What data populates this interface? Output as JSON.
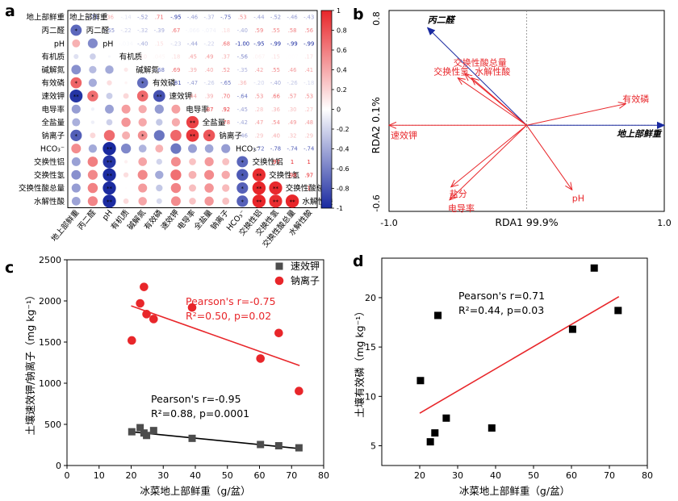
{
  "panels": {
    "a": "a",
    "b": "b",
    "c": "c",
    "d": "d"
  },
  "chart_data": [
    {
      "panel": "a",
      "type": "heatmap",
      "variables": [
        "地上部鲜重",
        "丙二醛",
        "pH",
        "有机质",
        "碱解氮",
        "有效磷",
        "速效钾",
        "电导率",
        "全盐量",
        "钠离子",
        "HCO₃⁻",
        "交换性铝",
        "交换性氢",
        "交换性酸总量",
        "水解性酸"
      ],
      "correlations": [
        [
          1,
          -0.71,
          0.36,
          -0.14,
          -0.52,
          0.71,
          -0.95,
          -0.46,
          -0.37,
          -0.75,
          0.53,
          -0.44,
          -0.52,
          -0.46,
          -0.43
        ],
        [
          -0.71,
          1,
          -0.55,
          -0.22,
          -0.32,
          -0.39,
          0.67,
          -0.066,
          -0.074,
          0.18,
          -0.4,
          0.59,
          0.55,
          0.58,
          0.56
        ],
        [
          0.36,
          -0.55,
          1,
          -0.034,
          -0.4,
          0.15,
          -0.23,
          -0.44,
          -0.22,
          0.68,
          -1.0,
          -0.95,
          -0.99,
          -0.99,
          -0.99
        ],
        [
          -0.14,
          -0.22,
          -0.034,
          1,
          0.1,
          0.045,
          0.18,
          0.45,
          0.49,
          0.37,
          -0.56,
          0.067,
          0.15,
          0.007,
          0.17
        ],
        [
          -0.52,
          -0.32,
          -0.4,
          0.1,
          1,
          -0.68,
          0.69,
          0.39,
          0.4,
          0.52,
          -0.35,
          0.42,
          0.55,
          0.46,
          0.41
        ],
        [
          0.71,
          -0.39,
          0.15,
          0.045,
          -0.68,
          1,
          -0.81,
          -0.47,
          -0.26,
          -0.65,
          0.36,
          -0.2,
          -0.4,
          -0.26,
          -0.18
        ],
        [
          -0.95,
          0.67,
          -0.23,
          0.18,
          0.69,
          -0.81,
          1,
          0.44,
          0.39,
          0.7,
          -0.64,
          0.53,
          0.66,
          0.57,
          0.53
        ],
        [
          -0.46,
          -0.066,
          -0.44,
          0.45,
          0.39,
          -0.47,
          0.44,
          1,
          0.87,
          0.92,
          -0.45,
          0.28,
          0.36,
          0.3,
          0.27
        ],
        [
          -0.37,
          -0.074,
          -0.22,
          0.49,
          0.4,
          -0.26,
          0.39,
          0.87,
          1,
          0.78,
          -0.42,
          0.47,
          0.54,
          0.49,
          0.48
        ],
        [
          -0.75,
          0.18,
          0.68,
          0.37,
          0.52,
          -0.65,
          0.7,
          0.92,
          0.78,
          1,
          -0.46,
          0.29,
          0.4,
          0.32,
          0.29
        ],
        [
          0.53,
          -0.4,
          -1.0,
          -0.56,
          -0.35,
          0.36,
          -0.64,
          -0.45,
          -0.42,
          -0.46,
          1,
          -0.72,
          -0.78,
          -0.74,
          -0.74
        ],
        [
          -0.44,
          0.59,
          -0.95,
          0.067,
          0.42,
          -0.2,
          0.53,
          0.28,
          0.47,
          0.29,
          -0.72,
          1,
          0.97,
          1.0,
          1.0
        ],
        [
          -0.52,
          0.55,
          -0.99,
          0.15,
          0.55,
          -0.4,
          0.66,
          0.36,
          0.54,
          0.4,
          -0.78,
          0.97,
          1,
          0.98,
          0.97
        ],
        [
          -0.46,
          0.58,
          -0.99,
          0.007,
          0.46,
          -0.26,
          0.57,
          0.3,
          0.49,
          0.32,
          -0.74,
          1.0,
          0.98,
          1,
          1.0
        ],
        [
          -0.43,
          0.56,
          -0.99,
          0.17,
          0.41,
          -0.18,
          0.53,
          0.27,
          0.48,
          0.29,
          -0.74,
          1.0,
          0.97,
          1.0,
          1
        ]
      ],
      "lower_triangle_stars": [
        {
          "row": 1,
          "col": 0,
          "stars": "*"
        },
        {
          "row": 5,
          "col": 0,
          "stars": "*"
        },
        {
          "row": 5,
          "col": 4,
          "stars": "*"
        },
        {
          "row": 6,
          "col": 0,
          "stars": "**"
        },
        {
          "row": 6,
          "col": 1,
          "stars": "*"
        },
        {
          "row": 6,
          "col": 4,
          "stars": "*"
        },
        {
          "row": 6,
          "col": 5,
          "stars": "**"
        },
        {
          "row": 8,
          "col": 7,
          "stars": "**"
        },
        {
          "row": 9,
          "col": 0,
          "stars": "*"
        },
        {
          "row": 9,
          "col": 4,
          "stars": "*"
        },
        {
          "row": 9,
          "col": 7,
          "stars": "**"
        },
        {
          "row": 9,
          "col": 8,
          "stars": "*"
        },
        {
          "row": 10,
          "col": 2,
          "stars": "**"
        },
        {
          "row": 11,
          "col": 2,
          "stars": "**"
        },
        {
          "row": 11,
          "col": 10,
          "stars": "*"
        },
        {
          "row": 12,
          "col": 2,
          "stars": "**"
        },
        {
          "row": 12,
          "col": 10,
          "stars": "*"
        },
        {
          "row": 12,
          "col": 11,
          "stars": "**"
        },
        {
          "row": 13,
          "col": 2,
          "stars": "**"
        },
        {
          "row": 13,
          "col": 10,
          "stars": "*"
        },
        {
          "row": 13,
          "col": 11,
          "stars": "**"
        },
        {
          "row": 13,
          "col": 12,
          "stars": "**"
        },
        {
          "row": 14,
          "col": 2,
          "stars": "**"
        },
        {
          "row": 14,
          "col": 10,
          "stars": "*"
        },
        {
          "row": 14,
          "col": 11,
          "stars": "**"
        },
        {
          "row": 14,
          "col": 12,
          "stars": "**"
        },
        {
          "row": 14,
          "col": 13,
          "stars": "**"
        }
      ],
      "colorbar_ticks": [
        1,
        0.8,
        0.6,
        0.4,
        0.2,
        0,
        -0.2,
        -0.4,
        -0.6,
        -0.8,
        -1
      ],
      "colors": {
        "positive": "#e8262a",
        "negative": "#1a2aa0",
        "neutral": "#ffffff"
      }
    },
    {
      "panel": "b",
      "type": "scatter",
      "xlabel": "RDA1 99.9%",
      "ylabel": "RDA2 0.1%",
      "xlim": [
        -1.0,
        1.0
      ],
      "ylim": [
        -0.6,
        0.8
      ],
      "x_ticks": [
        "-1.0",
        "1.0"
      ],
      "y_ticks": [
        "0.8",
        "-0.6"
      ],
      "response_arrows": [
        {
          "label": "丙二醛",
          "x": -0.72,
          "y": 0.68
        },
        {
          "label": "地上部鲜重",
          "x": 1.0,
          "y": 0.0
        }
      ],
      "explanatory_arrows": [
        {
          "label": "交换性酸总量",
          "x": -0.45,
          "y": 0.36
        },
        {
          "label": "交换性氢",
          "x": -0.5,
          "y": 0.33
        },
        {
          "label": "水解性酸",
          "x": -0.4,
          "y": 0.33
        },
        {
          "label": "有效磷",
          "x": 0.72,
          "y": 0.15
        },
        {
          "label": "速效钾",
          "x": -1.0,
          "y": 0.0
        },
        {
          "label": "pH",
          "x": 0.33,
          "y": -0.45
        },
        {
          "label": "盐分",
          "x": -0.55,
          "y": -0.43
        },
        {
          "label": "电导率",
          "x": -0.56,
          "y": -0.52
        }
      ],
      "colors": {
        "response": "#1a2aa0",
        "explanatory": "#e8262a"
      }
    },
    {
      "panel": "c",
      "type": "scatter",
      "xlabel": "冰菜地上部鲜重（g/盆）",
      "ylabel": "土壤速效钾/钠离子（mg kg⁻¹）",
      "xlim": [
        0,
        80
      ],
      "ylim": [
        0,
        2500
      ],
      "x_ticks": [
        0,
        10,
        20,
        30,
        40,
        50,
        60,
        70,
        80
      ],
      "y_ticks": [
        0,
        500,
        1000,
        1500,
        2000,
        2500
      ],
      "series": [
        {
          "name": "速效钾",
          "marker": "square",
          "color": "#4d4d4d",
          "x": [
            20.2,
            22.8,
            24.0,
            24.8,
            27.0,
            39.0,
            60.3,
            66.0,
            72.3
          ],
          "y": [
            410,
            460,
            395,
            365,
            425,
            330,
            255,
            240,
            215
          ],
          "fit": {
            "x": [
              20,
              72.5
            ],
            "y": [
              410,
              205
            ],
            "color": "#000000"
          },
          "annotation": [
            "Pearson's r=-0.95",
            "R²=0.88, p=0.0001"
          ]
        },
        {
          "name": "钠离子",
          "marker": "circle",
          "color": "#e8262a",
          "x": [
            20.2,
            22.8,
            24.0,
            24.8,
            27.0,
            39.0,
            60.3,
            66.0,
            72.3
          ],
          "y": [
            1520,
            1970,
            2170,
            1840,
            1780,
            1920,
            1300,
            1610,
            905
          ],
          "fit": {
            "x": [
              20,
              72.5
            ],
            "y": [
              1940,
              1215
            ],
            "color": "#e8262a"
          },
          "annotation": [
            "Pearson's r=-0.75",
            "R²=0.50, p=0.02"
          ]
        }
      ]
    },
    {
      "panel": "d",
      "type": "scatter",
      "xlabel": "冰菜地上部鲜重（g/盆）",
      "ylabel": "土壤有效磷（mg kg⁻¹）",
      "xlim": [
        10,
        80
      ],
      "ylim": [
        3,
        24
      ],
      "x_ticks": [
        20,
        30,
        40,
        50,
        60,
        70,
        80
      ],
      "y_ticks": [
        5,
        10,
        15,
        20
      ],
      "series": [
        {
          "name": "有效磷",
          "marker": "square",
          "color": "#000000",
          "x": [
            20.2,
            22.8,
            24.0,
            24.8,
            27.0,
            39.0,
            60.3,
            66.0,
            72.3
          ],
          "y": [
            11.6,
            5.4,
            6.3,
            18.2,
            7.8,
            6.8,
            16.8,
            23.0,
            18.7
          ],
          "fit": {
            "x": [
              20,
              72.5
            ],
            "y": [
              8.3,
              20.1
            ],
            "color": "#e8262a"
          },
          "annotation": [
            "Pearson's r=0.71",
            "R²=0.44, p=0.03"
          ]
        }
      ]
    }
  ]
}
